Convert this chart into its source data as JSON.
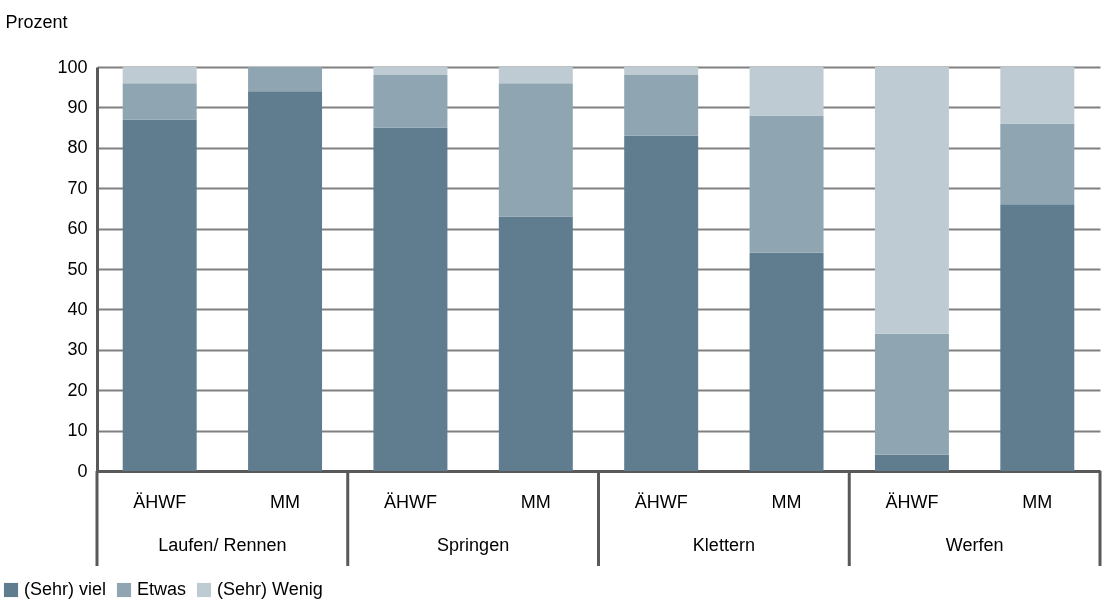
{
  "chart_data": {
    "type": "bar",
    "stacked": true,
    "ylabel": "Prozent",
    "categories": [
      "ÄHWF",
      "MM",
      "ÄHWF",
      "MM",
      "ÄHWF",
      "MM",
      "ÄHWF",
      "MM"
    ],
    "series": [
      {
        "name": "(Sehr) viel",
        "color": "#5f7d8f",
        "values": [
          87,
          94,
          85,
          63,
          83,
          54,
          4,
          66
        ]
      },
      {
        "name": "Etwas",
        "color": "#8fa5b1",
        "values": [
          9,
          6,
          13,
          33,
          15,
          34,
          30,
          20
        ]
      },
      {
        "name": "(Sehr) Wenig",
        "color": "#bfcbd3",
        "values": [
          4,
          0,
          2,
          4,
          2,
          12,
          66,
          14
        ]
      }
    ],
    "annotations": [
      "Laufen/ Rennen",
      "Springen",
      "Klettern",
      "Werfen"
    ],
    "ylim": [
      0,
      100
    ],
    "yticks": [
      0,
      10,
      20,
      30,
      40,
      50,
      60,
      70,
      80,
      90,
      100
    ],
    "grid": "y",
    "legend": "bottom left"
  }
}
